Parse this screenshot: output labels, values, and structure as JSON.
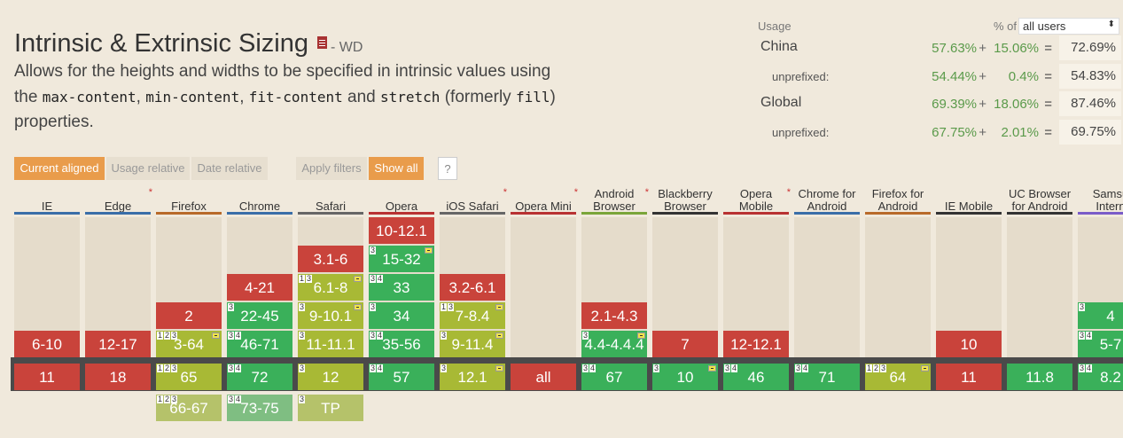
{
  "feature": {
    "title": "Intrinsic & Extrinsic Sizing",
    "status": "- WD",
    "desc_1": "Allows for the heights and widths to be specified in intrinsic values using the ",
    "code_1": "max-content",
    "sep_1": ", ",
    "code_2": "min-content",
    "sep_2": ", ",
    "code_3": "fit-content",
    "sep_3": " and ",
    "code_4": "stretch",
    "desc_2": " (formerly ",
    "code_5": "fill",
    "desc_3": ") properties."
  },
  "usage": {
    "header": "Usage",
    "pct_of": "% of",
    "select_value": "all users",
    "rows": [
      {
        "label": "China",
        "v1": "57.63%",
        "plus": "+",
        "v2": "15.06%",
        "eq": "=",
        "total": "72.69%"
      },
      {
        "label": "unprefixed:",
        "v1": "54.44%",
        "plus": "+",
        "v2": "0.4%",
        "eq": "=",
        "total": "54.83%"
      },
      {
        "label": "Global",
        "v1": "69.39%",
        "plus": "+",
        "v2": "18.06%",
        "eq": "=",
        "total": "87.46%"
      },
      {
        "label": "unprefixed:",
        "v1": "67.75%",
        "plus": "+",
        "v2": "2.01%",
        "eq": "=",
        "total": "69.75%"
      }
    ]
  },
  "toolbar": {
    "current_aligned": "Current aligned",
    "usage_relative": "Usage relative",
    "date_relative": "Date relative",
    "apply_filters": "Apply filters",
    "show_all": "Show all",
    "help": "?"
  },
  "colors": {
    "supported": "#3ab05a",
    "partial": "#a8b935",
    "unsupported": "#c9433b",
    "orange": "#e99c4b"
  },
  "browsers": [
    {
      "name": "IE",
      "line": "#3a6ea8",
      "star": false,
      "cells": [
        {
          "row": 4,
          "v": "6-10",
          "s": "red"
        },
        {
          "row": 5,
          "v": "11",
          "s": "red"
        }
      ]
    },
    {
      "name": "Edge",
      "line": "#3a6ea8",
      "star": true,
      "cells": [
        {
          "row": 4,
          "v": "12-17",
          "s": "red"
        },
        {
          "row": 5,
          "v": "18",
          "s": "red"
        }
      ]
    },
    {
      "name": "Firefox",
      "line": "#b86a2a",
      "star": false,
      "cells": [
        {
          "row": 3,
          "v": "2",
          "s": "red"
        },
        {
          "row": 4,
          "v": "3-64",
          "s": "olive",
          "n": [
            "1",
            "2",
            "3"
          ],
          "f": true
        },
        {
          "row": 5,
          "v": "65",
          "s": "olive",
          "n": [
            "1",
            "2",
            "3"
          ]
        },
        {
          "row": 6,
          "v": "66-67",
          "s": "olive",
          "n": [
            "1",
            "2",
            "3"
          ],
          "fade": true
        }
      ]
    },
    {
      "name": "Chrome",
      "line": "#3a6ea8",
      "star": false,
      "cells": [
        {
          "row": 2,
          "v": "4-21",
          "s": "red"
        },
        {
          "row": 3,
          "v": "22-45",
          "s": "green",
          "n": [
            "3"
          ]
        },
        {
          "row": 4,
          "v": "46-71",
          "s": "green",
          "n": [
            "3",
            "4"
          ]
        },
        {
          "row": 5,
          "v": "72",
          "s": "green",
          "n": [
            "3",
            "4"
          ]
        },
        {
          "row": 6,
          "v": "73-75",
          "s": "green",
          "n": [
            "3",
            "4"
          ],
          "fade": true
        }
      ]
    },
    {
      "name": "Safari",
      "line": "#666666",
      "star": false,
      "cells": [
        {
          "row": 1,
          "v": "3.1-6",
          "s": "red"
        },
        {
          "row": 2,
          "v": "6.1-8",
          "s": "olive",
          "n": [
            "1",
            "3"
          ],
          "f": true
        },
        {
          "row": 3,
          "v": "9-10.1",
          "s": "olive",
          "n": [
            "3"
          ],
          "f": true
        },
        {
          "row": 4,
          "v": "11-11.1",
          "s": "olive",
          "n": [
            "3"
          ]
        },
        {
          "row": 5,
          "v": "12",
          "s": "olive",
          "n": [
            "3"
          ]
        },
        {
          "row": 6,
          "v": "TP",
          "s": "olive",
          "n": [
            "3"
          ],
          "fade": true
        }
      ]
    },
    {
      "name": "Opera",
      "line": "#b83232",
      "star": false,
      "cells": [
        {
          "row": 0,
          "v": "10-12.1",
          "s": "red"
        },
        {
          "row": 1,
          "v": "15-32",
          "s": "green",
          "n": [
            "3"
          ],
          "f": true
        },
        {
          "row": 2,
          "v": "33",
          "s": "green",
          "n": [
            "3",
            "4"
          ]
        },
        {
          "row": 3,
          "v": "34",
          "s": "green",
          "n": [
            "3"
          ]
        },
        {
          "row": 4,
          "v": "35-56",
          "s": "green",
          "n": [
            "3",
            "4"
          ]
        },
        {
          "row": 5,
          "v": "57",
          "s": "green",
          "n": [
            "3",
            "4"
          ]
        }
      ]
    },
    {
      "name": "iOS Safari",
      "line": "#666666",
      "star": true,
      "cells": [
        {
          "row": 2,
          "v": "3.2-6.1",
          "s": "red"
        },
        {
          "row": 3,
          "v": "7-8.4",
          "s": "olive",
          "n": [
            "1",
            "3"
          ],
          "f": true
        },
        {
          "row": 4,
          "v": "9-11.4",
          "s": "olive",
          "n": [
            "3"
          ],
          "f": true
        },
        {
          "row": 5,
          "v": "12.1",
          "s": "olive",
          "n": [
            "3"
          ],
          "f": true
        }
      ]
    },
    {
      "name": "Opera Mini",
      "line": "#b83232",
      "star": true,
      "cells": [
        {
          "row": 5,
          "v": "all",
          "s": "red"
        }
      ]
    },
    {
      "name": "Android Browser",
      "name2": "Browser",
      "line": "#7aa53a",
      "star": true,
      "cells": [
        {
          "row": 3,
          "v": "2.1-4.3",
          "s": "red"
        },
        {
          "row": 4,
          "v": "4.4-4.4.4",
          "s": "green",
          "n": [
            "3"
          ],
          "f": true
        },
        {
          "row": 5,
          "v": "67",
          "s": "green",
          "n": [
            "3",
            "4"
          ]
        }
      ]
    },
    {
      "name": "Blackberry Browser",
      "name2": "Browser",
      "line": "#333333",
      "star": false,
      "cells": [
        {
          "row": 4,
          "v": "7",
          "s": "red"
        },
        {
          "row": 5,
          "v": "10",
          "s": "green",
          "n": [
            "3"
          ],
          "f": true
        }
      ]
    },
    {
      "name": "Opera Mobile",
      "name2": "Mobile",
      "line": "#b83232",
      "star": true,
      "cells": [
        {
          "row": 4,
          "v": "12-12.1",
          "s": "red"
        },
        {
          "row": 5,
          "v": "46",
          "s": "green",
          "n": [
            "3",
            "4"
          ]
        }
      ]
    },
    {
      "name": "Chrome for Android",
      "name2": "Android",
      "line": "#3a6ea8",
      "star": false,
      "cells": [
        {
          "row": 5,
          "v": "71",
          "s": "green",
          "n": [
            "3",
            "4"
          ]
        }
      ]
    },
    {
      "name": "Firefox for Android",
      "name2": "Android",
      "line": "#b86a2a",
      "star": false,
      "cells": [
        {
          "row": 5,
          "v": "64",
          "s": "olive",
          "n": [
            "1",
            "2",
            "3"
          ],
          "f": true
        }
      ]
    },
    {
      "name": "IE Mobile",
      "line": "#333333",
      "star": false,
      "cells": [
        {
          "row": 4,
          "v": "10",
          "s": "red"
        },
        {
          "row": 5,
          "v": "11",
          "s": "red"
        }
      ]
    },
    {
      "name": "UC Browser for Android",
      "name2": "for Android",
      "line": "#333333",
      "star": false,
      "cells": [
        {
          "row": 5,
          "v": "11.8",
          "s": "green"
        }
      ]
    },
    {
      "name": "Samsung Internet",
      "name2": "Intern",
      "line": "#7a5cc8",
      "star": false,
      "cells": [
        {
          "row": 3,
          "v": "4",
          "s": "green",
          "n": [
            "3"
          ]
        },
        {
          "row": 4,
          "v": "5-7",
          "s": "green",
          "n": [
            "3",
            "4"
          ]
        },
        {
          "row": 5,
          "v": "8.2",
          "s": "green",
          "n": [
            "3",
            "4"
          ]
        }
      ]
    }
  ],
  "header_labels": [
    [
      "IE"
    ],
    [
      "Edge"
    ],
    [
      "Firefox"
    ],
    [
      "Chrome"
    ],
    [
      "Safari"
    ],
    [
      "Opera"
    ],
    [
      "iOS Safari"
    ],
    [
      "Opera Mini"
    ],
    [
      "Android",
      "Browser"
    ],
    [
      "Blackberry",
      "Browser"
    ],
    [
      "Opera",
      "Mobile"
    ],
    [
      "Chrome for",
      "Android"
    ],
    [
      "Firefox for",
      "Android"
    ],
    [
      "IE Mobile"
    ],
    [
      "UC Browser",
      "for Android"
    ],
    [
      "Samsu",
      "Intern"
    ]
  ]
}
